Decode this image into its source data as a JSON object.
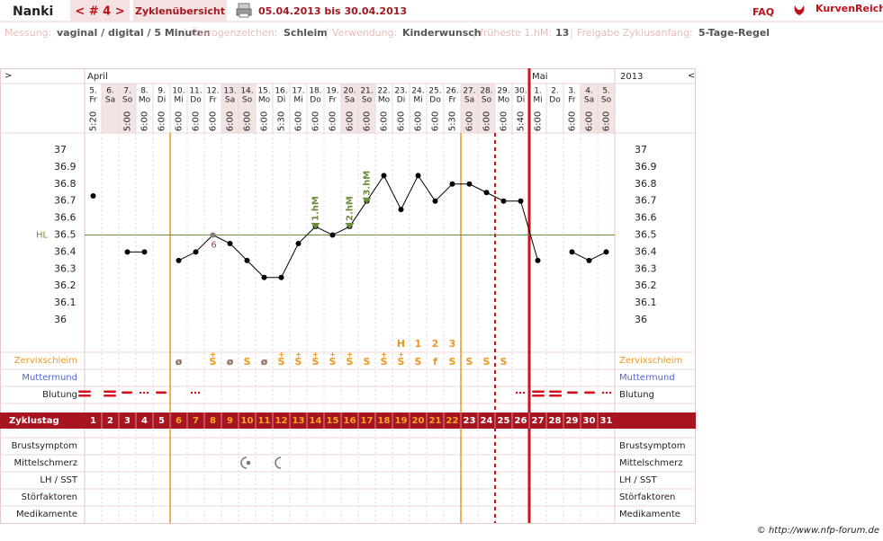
{
  "header": {
    "name": "Nanki",
    "cycle": "< # 4 >",
    "overview": "Zyklenübersicht",
    "period": "05.04.2013 bis 30.04.2013",
    "faq": "FAQ",
    "brand": "KurvenReich"
  },
  "info": [
    {
      "label": "Messung:",
      "value": "vaginal / digital / 5 Minuten"
    },
    {
      "label": "Östrogenzeichen:",
      "value": "Schleim"
    },
    {
      "label": "Verwendung:",
      "value": "Kinderwunsch"
    },
    {
      "label": "früheste 1.hM:",
      "value": "13"
    },
    {
      "label": "Freigabe Zyklusanfang:",
      "value": "5-Tage-Regel"
    }
  ],
  "chart_data": {
    "type": "line",
    "prev": ">",
    "next": "<",
    "months": [
      "April",
      "Mai"
    ],
    "year": "2013",
    "dates": [
      "5.",
      "6.",
      "7.",
      "8.",
      "9.",
      "10.",
      "11.",
      "12.",
      "13.",
      "14.",
      "15.",
      "16.",
      "17.",
      "18.",
      "19.",
      "20.",
      "21.",
      "22.",
      "23.",
      "24.",
      "25.",
      "26.",
      "27.",
      "28.",
      "29.",
      "30.",
      "1.",
      "2.",
      "3.",
      "4.",
      "5."
    ],
    "weekdays": [
      "Fr",
      "Sa",
      "So",
      "Mo",
      "Di",
      "Mi",
      "Do",
      "Fr",
      "Sa",
      "So",
      "Mo",
      "Di",
      "Mi",
      "Do",
      "Fr",
      "Sa",
      "So",
      "Mo",
      "Di",
      "Mi",
      "Do",
      "Fr",
      "Sa",
      "So",
      "Mo",
      "Di",
      "Mi",
      "Do",
      "Fr",
      "Sa",
      "So"
    ],
    "times": [
      "5:20",
      null,
      "5:00",
      "6:00",
      "6:00",
      "6:00",
      "6:00",
      "6:00",
      "6:00",
      "6:00",
      "6:00",
      "5:30",
      "6:00",
      "6:00",
      "6:00",
      "6:00",
      "6:00",
      "6:00",
      "6:00",
      "6:00",
      "6:00",
      "5:30",
      "6:00",
      "6:00",
      "6:00",
      "5:40",
      "6:00",
      null,
      "6:00",
      "6:00",
      "6:00"
    ],
    "values": [
      36.73,
      null,
      36.4,
      36.4,
      null,
      36.35,
      36.4,
      36.5,
      36.45,
      36.35,
      36.25,
      36.25,
      36.45,
      36.55,
      36.5,
      36.55,
      36.7,
      36.85,
      36.65,
      36.85,
      36.7,
      36.8,
      36.8,
      36.75,
      36.7,
      36.7,
      36.35,
      null,
      36.4,
      36.35,
      36.4
    ],
    "point_notes": [
      null,
      null,
      null,
      null,
      null,
      null,
      null,
      "6",
      null,
      null,
      null,
      null,
      null,
      null,
      null,
      null,
      null,
      null,
      null,
      null,
      null,
      null,
      null,
      null,
      null,
      null,
      null,
      null,
      null,
      null,
      null
    ],
    "hm_labels": [
      null,
      null,
      null,
      null,
      null,
      null,
      null,
      null,
      null,
      null,
      null,
      null,
      null,
      "1.hM",
      null,
      "2.hM",
      "3.hM",
      null,
      null,
      null,
      null,
      null,
      null,
      null,
      null,
      null,
      null,
      null,
      null,
      null,
      null
    ],
    "ylim": [
      36,
      37
    ],
    "yticks": [
      36,
      36.1,
      36.2,
      36.3,
      36.4,
      36.5,
      36.6,
      36.7,
      36.8,
      36.9,
      37
    ],
    "hl": 36.5,
    "hl_label": "HL",
    "color": "#000000",
    "hl_color": "#6b8e3a",
    "peak_labels": [
      null,
      null,
      null,
      null,
      null,
      null,
      null,
      null,
      null,
      null,
      null,
      null,
      null,
      null,
      null,
      null,
      null,
      null,
      "H",
      "1",
      "2",
      "3",
      null,
      null,
      null,
      null,
      null,
      null,
      null,
      null,
      null
    ],
    "cervix": [
      null,
      null,
      null,
      null,
      null,
      "ø",
      null,
      "S+",
      "ø",
      "S",
      "ø",
      "S+",
      "S+",
      "S+",
      "S+",
      "S+",
      "S",
      "S+",
      "S+",
      "S",
      "f",
      "S",
      "S",
      "S",
      "S",
      null,
      null,
      null,
      null,
      null,
      null
    ],
    "row_labels": [
      "Zervixschleim",
      "Muttermund",
      "Blutung"
    ],
    "cycle_label": "Zyklustag",
    "cycle_days": [
      1,
      2,
      3,
      4,
      5,
      6,
      7,
      8,
      9,
      10,
      11,
      12,
      13,
      14,
      15,
      16,
      17,
      18,
      19,
      20,
      21,
      22,
      23,
      24,
      25,
      26,
      27,
      28,
      29,
      30,
      31
    ],
    "fertile_window": [
      6,
      22
    ],
    "bottom_labels": [
      "Brustsymptom",
      "Mittelschmerz",
      "LH / SST",
      "Störfaktoren",
      "Medikamente"
    ]
  },
  "footer": "© http://www.nfp-forum.de"
}
